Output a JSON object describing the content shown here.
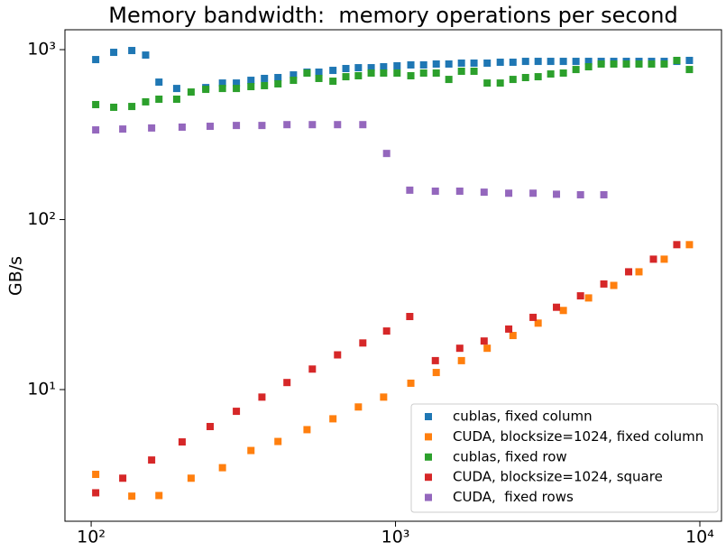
{
  "chart_data": {
    "type": "scatter",
    "title": "Memory bandwidth:  memory operations per second",
    "y_label": "GB/s",
    "log_x": true,
    "log_y": true,
    "xlim": [
      82,
      11780
    ],
    "ylim": [
      1.68,
      1309
    ],
    "xticks": [
      {
        "value": 100,
        "label": "10²"
      },
      {
        "value": 1000,
        "label": "10³"
      },
      {
        "value": 10000,
        "label": "10⁴"
      }
    ],
    "yticks": [
      {
        "value": 10,
        "label": "10¹"
      },
      {
        "value": 100,
        "label": "10²"
      },
      {
        "value": 1000,
        "label": "10³"
      }
    ],
    "legend": "lower right",
    "series": [
      {
        "name": "cublas, fixed column",
        "color": "#1f77b4",
        "x": [
          103.5,
          118.6,
          136,
          151,
          167,
          191,
          238,
          270,
          300,
          335,
          371,
          411,
          462,
          512,
          560,
          623,
          687,
          755,
          832,
          914,
          1012,
          1123,
          1237,
          1361,
          1497,
          1647,
          1811,
          2001,
          2209,
          2432,
          2675,
          2942,
          3236,
          3560,
          3917,
          4309,
          4741,
          5214,
          5735,
          6310,
          6941,
          7636,
          8401,
          9241
        ],
        "values": [
          874,
          964,
          988,
          929,
          644,
          591,
          598,
          636,
          636,
          660,
          677,
          685,
          710,
          737,
          737,
          755,
          774,
          783,
          783,
          793,
          803,
          813,
          813,
          823,
          823,
          833,
          833,
          833,
          843,
          843,
          853,
          853,
          853,
          853,
          853,
          853,
          853,
          853,
          853,
          853,
          853,
          853,
          853,
          864
        ]
      },
      {
        "name": "CUDA, blocksize=1024, fixed column",
        "color": "#ff7f0e",
        "x": [
          103.5,
          136,
          167,
          213,
          270,
          335,
          411,
          512,
          623,
          755,
          914,
          1123,
          1361,
          1647,
          2001,
          2432,
          2942,
          3560,
          4309,
          5214,
          6310,
          7636,
          9241
        ],
        "values": [
          3.17,
          2.36,
          2.38,
          3.01,
          3.47,
          4.38,
          4.95,
          5.81,
          6.73,
          7.9,
          9.03,
          10.9,
          12.6,
          14.8,
          17.5,
          20.8,
          24.6,
          29.2,
          34.6,
          41.0,
          49.3,
          58.5,
          71.2
        ]
      },
      {
        "name": "cublas, fixed row",
        "color": "#2ca02c",
        "x": [
          103.5,
          118.6,
          136,
          151,
          167,
          191,
          213,
          238,
          270,
          300,
          335,
          371,
          411,
          462,
          512,
          560,
          623,
          687,
          755,
          832,
          914,
          1012,
          1123,
          1237,
          1361,
          1497,
          1647,
          1811,
          2001,
          2209,
          2432,
          2675,
          2942,
          3236,
          3560,
          3917,
          4309,
          4741,
          5214,
          5735,
          6310,
          6941,
          7636,
          8401,
          9241
        ],
        "values": [
          475,
          458,
          463,
          493,
          511,
          511,
          563,
          584,
          591,
          591,
          606,
          614,
          629,
          660,
          728,
          677,
          652,
          693,
          702,
          728,
          728,
          728,
          702,
          728,
          728,
          668,
          746,
          746,
          636,
          636,
          668,
          685,
          693,
          719,
          728,
          764,
          793,
          823,
          823,
          823,
          823,
          823,
          823,
          864,
          764
        ]
      },
      {
        "name": "CUDA, blocksize=1024, square",
        "color": "#d62728",
        "x": [
          103.5,
          127,
          158,
          199,
          246,
          300,
          364,
          440,
          533,
          645,
          781,
          935,
          1114,
          1352,
          1626,
          1955,
          2355,
          2832,
          3380,
          4054,
          4837,
          5835,
          7038,
          8400
        ],
        "values": [
          2.47,
          3.01,
          3.85,
          4.92,
          6.06,
          7.45,
          9.03,
          11.0,
          13.2,
          16.0,
          18.8,
          22.1,
          26.9,
          14.8,
          17.5,
          19.3,
          22.7,
          26.6,
          30.5,
          35.6,
          41.8,
          49.3,
          58.5,
          71.2
        ]
      },
      {
        "name": "CUDA,  fixed rows",
        "color": "#9467bd",
        "x": [
          103.5,
          127,
          158,
          199,
          246,
          300,
          364,
          440,
          533,
          645,
          781,
          935,
          1114,
          1352,
          1626,
          1955,
          2355,
          2832,
          3380,
          4054,
          4837
        ],
        "values": [
          337,
          341,
          346,
          350,
          354,
          358,
          358,
          362,
          362,
          362,
          362,
          245,
          149,
          147,
          147,
          145,
          143,
          143,
          141,
          140,
          140
        ]
      }
    ]
  }
}
